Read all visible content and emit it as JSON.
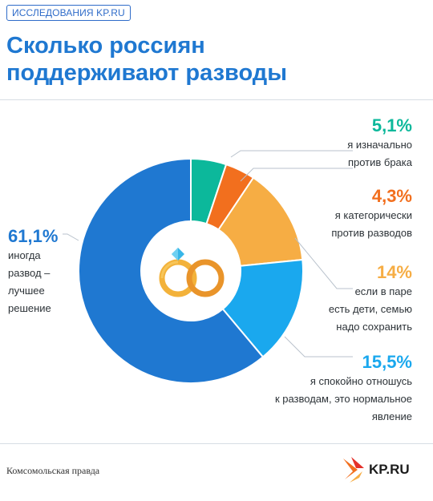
{
  "header": {
    "tag": "ИССЛЕДОВАНИЯ KP.RU",
    "title_line1": "Сколько россиян",
    "title_line2": "поддерживают разводы"
  },
  "chart_data": {
    "type": "pie",
    "title": "Сколько россиян поддерживают разводы",
    "categories": [
      "я изначально против брака",
      "я категорически против разводов",
      "если в паре есть дети, семью надо сохранить",
      "я спокойно отношусь к разводам, это нормальное явление",
      "иногда развод – лучшее решение"
    ],
    "values": [
      5.1,
      4.3,
      14,
      15.5,
      61.1
    ],
    "value_labels": [
      "5,1%",
      "4,3%",
      "14%",
      "15,5%",
      "61,1%"
    ],
    "colors": [
      "#0cb89b",
      "#f26f1e",
      "#f6ad44",
      "#1aa8ee",
      "#1f78d1"
    ],
    "label_texts": [
      "я изначально\nпротив брака",
      "я категорически\nпротив разводов",
      "если в паре\nесть дети, семью\nнадо сохранить",
      "я спокойно отношусь\nк разводам, это нормальное\nявление",
      "иногда\nразвод –\nлучшее\nрешение"
    ],
    "donut": true
  },
  "center_icon": "wedding-rings-icon",
  "footer": {
    "source": "Комсомольская правда",
    "logo_text": "KP.RU",
    "logo_icon": "kp-ru-logo-icon"
  }
}
